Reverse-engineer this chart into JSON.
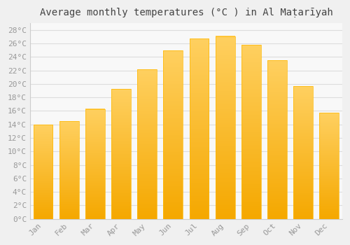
{
  "title": "Average monthly temperatures (°C ) in Al Maṭarīyah",
  "months": [
    "Jan",
    "Feb",
    "Mar",
    "Apr",
    "May",
    "Jun",
    "Jul",
    "Aug",
    "Sep",
    "Oct",
    "Nov",
    "Dec"
  ],
  "values": [
    14.0,
    14.5,
    16.3,
    19.3,
    22.2,
    25.0,
    26.7,
    27.1,
    25.8,
    23.5,
    19.7,
    15.7
  ],
  "bar_color_bottom": "#F5A800",
  "bar_color_top": "#FFD060",
  "background_color": "#F0F0F0",
  "plot_bg_color": "#F8F8F8",
  "grid_color": "#DDDDDD",
  "tick_label_color": "#999999",
  "title_color": "#444444",
  "ylim": [
    0,
    29
  ],
  "yticks": [
    0,
    2,
    4,
    6,
    8,
    10,
    12,
    14,
    16,
    18,
    20,
    22,
    24,
    26,
    28
  ],
  "title_fontsize": 10,
  "tick_fontsize": 8,
  "bar_width": 0.75
}
